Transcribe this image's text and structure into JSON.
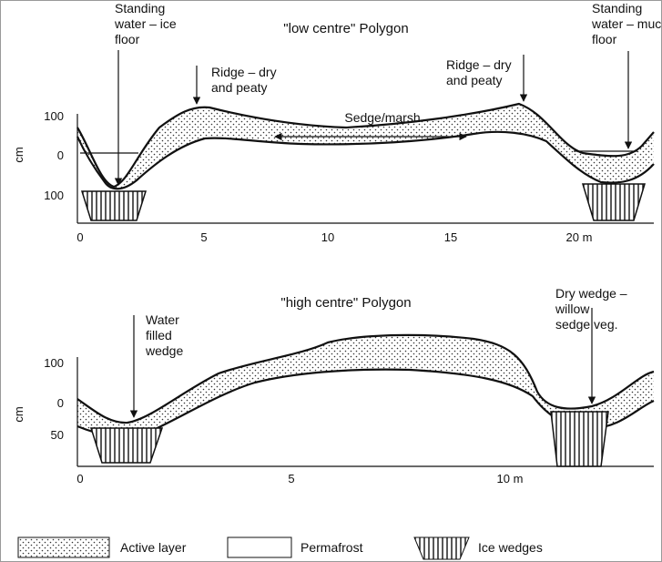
{
  "top": {
    "title": "\"low centre\" Polygon",
    "labels": [
      {
        "lines": [
          "Standing",
          "water – ice",
          "floor"
        ]
      },
      {
        "lines": [
          "Ridge – dry",
          "and peaty"
        ]
      },
      {
        "lines": [
          "Sedge/marsh"
        ]
      },
      {
        "lines": [
          "Ridge – dry",
          "and peaty"
        ]
      },
      {
        "lines": [
          "Standing",
          "water – muck",
          "floor"
        ]
      }
    ],
    "y_axis": {
      "label": "cm",
      "ticks": [
        "100",
        "0",
        "100"
      ]
    },
    "x_axis": {
      "ticks": [
        "0",
        "5",
        "10",
        "15",
        "20 m"
      ]
    }
  },
  "bottom": {
    "title": "\"high centre\" Polygon",
    "labels": [
      {
        "lines": [
          "Water",
          "filled",
          "wedge"
        ]
      },
      {
        "lines": [
          "Dry wedge –",
          "willow",
          "sedge veg."
        ]
      }
    ],
    "y_axis": {
      "label": "cm",
      "ticks": [
        "100",
        "0",
        "50"
      ]
    },
    "x_axis": {
      "ticks": [
        "0",
        "5",
        "10 m"
      ]
    }
  },
  "legend": [
    "Active layer",
    "Permafrost",
    "Ice wedges"
  ]
}
